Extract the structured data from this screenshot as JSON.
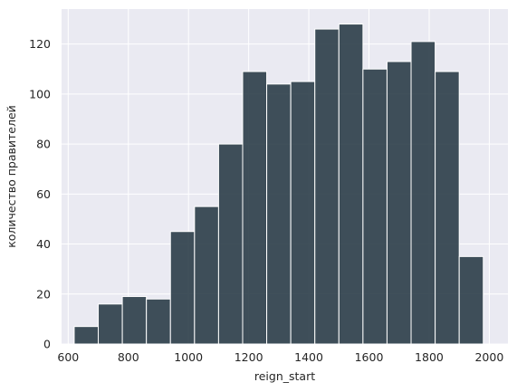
{
  "chart_data": {
    "type": "bar",
    "title": "",
    "xlabel": "reign_start",
    "ylabel": "количество правителей",
    "xlim": [
      578,
      2062
    ],
    "ylim": [
      0,
      134
    ],
    "xticks": [
      600,
      800,
      1000,
      1200,
      1400,
      1600,
      1800,
      2000
    ],
    "yticks": [
      0,
      20,
      40,
      60,
      80,
      100,
      120
    ],
    "grid": true,
    "bins": [
      {
        "x0": 620,
        "x1": 700,
        "value": 7
      },
      {
        "x0": 700,
        "x1": 780,
        "value": 16
      },
      {
        "x0": 780,
        "x1": 860,
        "value": 19
      },
      {
        "x0": 860,
        "x1": 940,
        "value": 18
      },
      {
        "x0": 940,
        "x1": 1020,
        "value": 45
      },
      {
        "x0": 1020,
        "x1": 1100,
        "value": 55
      },
      {
        "x0": 1100,
        "x1": 1180,
        "value": 80
      },
      {
        "x0": 1180,
        "x1": 1260,
        "value": 109
      },
      {
        "x0": 1260,
        "x1": 1340,
        "value": 104
      },
      {
        "x0": 1340,
        "x1": 1420,
        "value": 105
      },
      {
        "x0": 1420,
        "x1": 1500,
        "value": 126
      },
      {
        "x0": 1500,
        "x1": 1580,
        "value": 128
      },
      {
        "x0": 1580,
        "x1": 1660,
        "value": 110
      },
      {
        "x0": 1660,
        "x1": 1740,
        "value": 113
      },
      {
        "x0": 1740,
        "x1": 1820,
        "value": 121
      },
      {
        "x0": 1820,
        "x1": 1900,
        "value": 109
      },
      {
        "x0": 1900,
        "x1": 1980,
        "value": 35
      }
    ],
    "colors": {
      "bar": "#2b3d48",
      "bar_edge": "#ffffff",
      "plot_bg": "#eaeaf2",
      "grid": "#ffffff"
    }
  }
}
